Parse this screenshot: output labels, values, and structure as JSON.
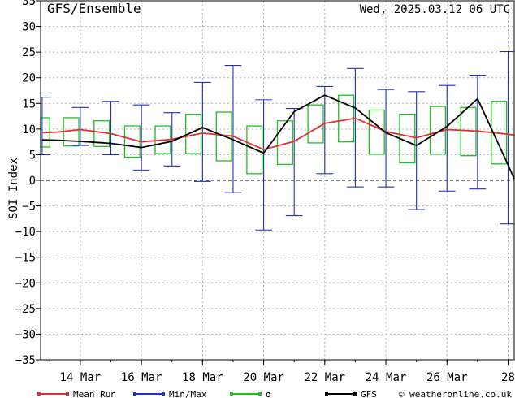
{
  "header": {
    "left": "GFS/Ensemble",
    "right": "Wed, 2025.03.12  06 UTC"
  },
  "chart_data": {
    "type": "line",
    "title": "GFS/Ensemble",
    "ylabel": "SOI Index",
    "xlabel": "",
    "ylim": [
      -35,
      35
    ],
    "yticks": [
      35,
      30,
      25,
      20,
      15,
      10,
      5,
      0,
      -5,
      -10,
      -15,
      -20,
      -25,
      -30,
      -35
    ],
    "ytick_labels": [
      "35",
      "30",
      "25",
      "20",
      "15",
      "10",
      "5",
      "0",
      "−5",
      "−10",
      "−15",
      "−20",
      "−25",
      "−30",
      "−35"
    ],
    "xlim_days": [
      12.7,
      28.2
    ],
    "xtick_labels": [
      {
        "day": 14,
        "label": "14 Mar"
      },
      {
        "day": 16,
        "label": "16 Mar"
      },
      {
        "day": 18,
        "label": "18 Mar"
      },
      {
        "day": 20,
        "label": "20 Mar"
      },
      {
        "day": 22,
        "label": "22 Mar"
      },
      {
        "day": 24,
        "label": "24 Mar"
      },
      {
        "day": 26,
        "label": "26 Mar"
      },
      {
        "day": 28,
        "label": "28"
      }
    ],
    "grid": true,
    "x": [
      12.75,
      13.25,
      14.0,
      15.0,
      16.0,
      17.0,
      18.0,
      19.0,
      20.0,
      21.0,
      22.0,
      23.0,
      24.0,
      25.0,
      26.0,
      27.0,
      28.0,
      28.2
    ],
    "series": [
      {
        "name": "Mean Run",
        "color": "#e03030",
        "values": [
          9.3,
          9.4,
          9.9,
          9.1,
          7.5,
          8.0,
          9.2,
          8.6,
          6.0,
          7.6,
          11.1,
          12.1,
          9.5,
          8.3,
          9.9,
          9.6,
          9.0,
          8.8
        ]
      },
      {
        "name": "GFS",
        "color": "#000000",
        "values": [
          7.9,
          7.8,
          7.6,
          7.2,
          6.4,
          7.6,
          10.3,
          7.9,
          5.3,
          13.4,
          16.6,
          14.1,
          9.3,
          6.8,
          10.5,
          15.9,
          3.0,
          0.3
        ]
      }
    ],
    "minmax": {
      "name": "Min/Max",
      "color": "#2030c0",
      "items": [
        {
          "x": 12.75,
          "min": 5,
          "max": 16.2
        },
        {
          "x": 14.0,
          "min": 6.8,
          "max": 14.2
        },
        {
          "x": 15.0,
          "min": 5.0,
          "max": 15.4
        },
        {
          "x": 16.0,
          "min": 2.0,
          "max": 14.7
        },
        {
          "x": 17.0,
          "min": 2.8,
          "max": 13.2
        },
        {
          "x": 18.0,
          "min": -0.2,
          "max": 19.1
        },
        {
          "x": 19.0,
          "min": -2.4,
          "max": 22.4
        },
        {
          "x": 20.0,
          "min": -9.7,
          "max": 15.7
        },
        {
          "x": 21.0,
          "min": -6.9,
          "max": 14.0
        },
        {
          "x": 22.0,
          "min": 1.3,
          "max": 18.3
        },
        {
          "x": 23.0,
          "min": -1.3,
          "max": 21.8
        },
        {
          "x": 24.0,
          "min": -1.3,
          "max": 17.7
        },
        {
          "x": 25.0,
          "min": -5.7,
          "max": 17.3
        },
        {
          "x": 26.0,
          "min": -2.1,
          "max": 18.5
        },
        {
          "x": 27.0,
          "min": -1.7,
          "max": 20.5
        },
        {
          "x": 28.0,
          "min": -8.5,
          "max": 25.1
        }
      ]
    },
    "sigma": {
      "name": "σ",
      "color": "#20c020",
      "items": [
        {
          "x": 12.75,
          "lo": 6.5,
          "hi": 12.2
        },
        {
          "x": 13.7,
          "lo": 6.7,
          "hi": 12.2
        },
        {
          "x": 14.7,
          "lo": 6.6,
          "hi": 11.6
        },
        {
          "x": 15.7,
          "lo": 4.5,
          "hi": 10.6
        },
        {
          "x": 16.7,
          "lo": 5.2,
          "hi": 10.6
        },
        {
          "x": 17.7,
          "lo": 5.2,
          "hi": 12.9
        },
        {
          "x": 18.7,
          "lo": 3.8,
          "hi": 13.3
        },
        {
          "x": 19.7,
          "lo": 1.3,
          "hi": 10.6
        },
        {
          "x": 20.7,
          "lo": 3.1,
          "hi": 11.6
        },
        {
          "x": 21.7,
          "lo": 7.3,
          "hi": 14.7
        },
        {
          "x": 22.7,
          "lo": 7.5,
          "hi": 16.6
        },
        {
          "x": 23.7,
          "lo": 5.1,
          "hi": 13.7
        },
        {
          "x": 24.7,
          "lo": 3.4,
          "hi": 12.9
        },
        {
          "x": 25.7,
          "lo": 5.1,
          "hi": 14.4
        },
        {
          "x": 26.7,
          "lo": 4.8,
          "hi": 14.2
        },
        {
          "x": 27.7,
          "lo": 3.2,
          "hi": 15.4
        }
      ]
    },
    "legend": [
      {
        "name": "Mean Run",
        "color": "#e03030",
        "kind": "line"
      },
      {
        "name": "Min/Max",
        "color": "#2030c0",
        "kind": "line"
      },
      {
        "name": "σ",
        "color": "#20c020",
        "kind": "line"
      },
      {
        "name": "GFS",
        "color": "#000000",
        "kind": "line"
      }
    ],
    "legend_position": "bottom",
    "credit": "© weatheronline.co.uk"
  }
}
